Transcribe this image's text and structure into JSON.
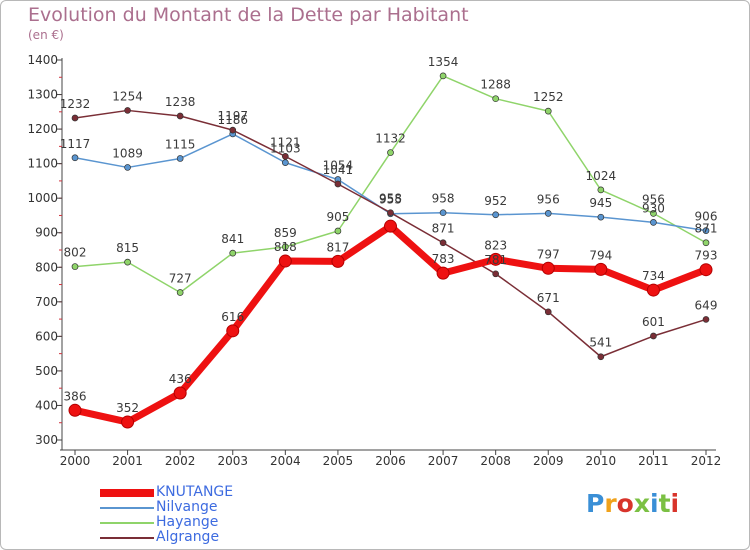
{
  "title": "Evolution du Montant de la Dette par Habitant",
  "unit_label": "(en €)",
  "logo_text": "Proxiti",
  "logo_colors": [
    "#3a8fd6",
    "#f0a21b",
    "#d8342b",
    "#7bc043",
    "#3a8fd6",
    "#7bc043",
    "#d8342b"
  ],
  "chart_data": {
    "type": "line",
    "x": [
      "2000",
      "2001",
      "2002",
      "2003",
      "2004",
      "2005",
      "2006",
      "2007",
      "2008",
      "2009",
      "2010",
      "2011",
      "2012"
    ],
    "ylim": [
      300,
      1400
    ],
    "yticks": [
      300,
      400,
      500,
      600,
      700,
      800,
      900,
      1000,
      1100,
      1200,
      1300,
      1400
    ],
    "grid": false,
    "legend_position": "bottom-left",
    "series": [
      {
        "name": "KNUTANGE",
        "color": "#ee1111",
        "values": [
          386,
          352,
          436,
          616,
          818,
          817,
          919,
          783,
          823,
          797,
          794,
          734,
          793
        ],
        "labels": [
          "386",
          "352",
          "436",
          "616",
          "818",
          "817",
          "",
          "783",
          "823",
          "797",
          "794",
          "734",
          "793"
        ]
      },
      {
        "name": "Nilvange",
        "color": "#5a95d0",
        "values": [
          1117,
          1089,
          1115,
          1186,
          1103,
          1054,
          955,
          958,
          952,
          956,
          945,
          930,
          906
        ],
        "labels": [
          "1117",
          "1089",
          "1115",
          "1186",
          "1103",
          "1054",
          "955",
          "958",
          "952",
          "956",
          "945",
          "930",
          "906"
        ]
      },
      {
        "name": "Hayange",
        "color": "#8fd46a",
        "values": [
          802,
          815,
          727,
          841,
          859,
          905,
          1132,
          1354,
          1288,
          1252,
          1024,
          956,
          871
        ],
        "labels": [
          "802",
          "815",
          "727",
          "841",
          "859",
          "905",
          "1132",
          "1354",
          "1288",
          "1252",
          "1024",
          "956",
          "871"
        ]
      },
      {
        "name": "Algrange",
        "color": "#7a2e36",
        "values": [
          1232,
          1254,
          1238,
          1197,
          1121,
          1041,
          958,
          871,
          781,
          671,
          541,
          601,
          649
        ],
        "labels": [
          "1232",
          "1254",
          "1238",
          "1197",
          "1121",
          "1041",
          "958",
          "871",
          "781",
          "671",
          "541",
          "601",
          "649"
        ]
      }
    ]
  }
}
